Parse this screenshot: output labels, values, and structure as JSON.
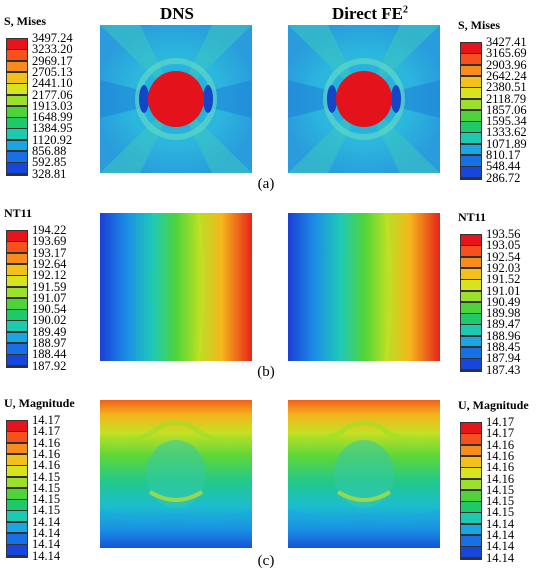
{
  "headers": {
    "dns": "DNS",
    "fe2_base": "Direct FE",
    "fe2_sup": "2"
  },
  "panels": [
    {
      "label": "(a)",
      "field": "stress"
    },
    {
      "label": "(b)",
      "field": "temperature"
    },
    {
      "label": "(c)",
      "field": "displacement"
    }
  ],
  "legends": {
    "a_left": {
      "title": "S, Mises",
      "values": [
        "3497.24",
        "3233.20",
        "2969.17",
        "2705.13",
        "2441.10",
        "2177.06",
        "1913.03",
        "1648.99",
        "1384.95",
        "1120.92",
        "856.88",
        "592.85",
        "328.81"
      ]
    },
    "a_right": {
      "title": "S, Mises",
      "values": [
        "3427.41",
        "3165.69",
        "2903.96",
        "2642.24",
        "2380.51",
        "2118.79",
        "1857.06",
        "1595.34",
        "1333.62",
        "1071.89",
        "810.17",
        "548.44",
        "286.72"
      ]
    },
    "b_left": {
      "title": "NT11",
      "values": [
        "194.22",
        "193.69",
        "193.17",
        "192.64",
        "192.12",
        "191.59",
        "191.07",
        "190.54",
        "190.02",
        "189.49",
        "188.97",
        "188.44",
        "187.92"
      ]
    },
    "b_right": {
      "title": "NT11",
      "values": [
        "193.56",
        "193.05",
        "192.54",
        "192.03",
        "191.52",
        "191.01",
        "190.49",
        "189.98",
        "189.47",
        "188.96",
        "188.45",
        "187.94",
        "187.43"
      ]
    },
    "c_left": {
      "title": "U, Magnitude",
      "values": [
        "14.17",
        "14.17",
        "14.16",
        "14.16",
        "14.16",
        "14.15",
        "14.15",
        "14.15",
        "14.15",
        "14.14",
        "14.14",
        "14.14",
        "14.14"
      ]
    },
    "c_right": {
      "title": "U, Magnitude",
      "values": [
        "14.17",
        "14.17",
        "14.16",
        "14.16",
        "14.16",
        "14.16",
        "14.15",
        "14.15",
        "14.15",
        "14.14",
        "14.14",
        "14.14",
        "14.14"
      ]
    }
  },
  "colors": {
    "bands": [
      "#e8141b",
      "#f4511e",
      "#f98b1f",
      "#f4c11c",
      "#d8e31f",
      "#9be02a",
      "#4fd33a",
      "#1ec96a",
      "#1ccab0",
      "#1ba6e3",
      "#1870e6",
      "#1646dd",
      "#1212c8"
    ],
    "inclusion": "#e3121b"
  }
}
